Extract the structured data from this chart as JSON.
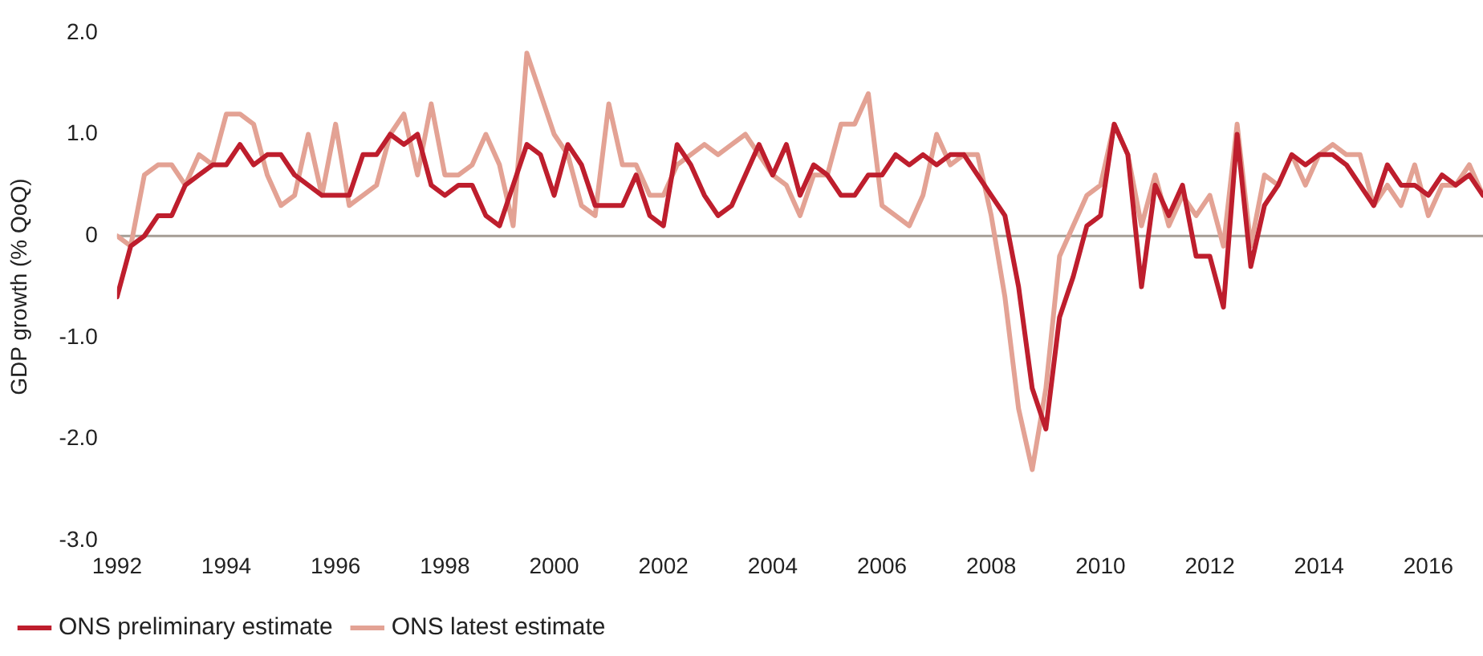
{
  "chart_data": {
    "type": "line",
    "ylabel": "GDP growth (% QoQ)",
    "x": [
      1992,
      1992.25,
      1992.5,
      1992.75,
      1993,
      1993.25,
      1993.5,
      1993.75,
      1994,
      1994.25,
      1994.5,
      1994.75,
      1995,
      1995.25,
      1995.5,
      1995.75,
      1996,
      1996.25,
      1996.5,
      1996.75,
      1997,
      1997.25,
      1997.5,
      1997.75,
      1998,
      1998.25,
      1998.5,
      1998.75,
      1999,
      1999.25,
      1999.5,
      1999.75,
      2000,
      2000.25,
      2000.5,
      2000.75,
      2001,
      2001.25,
      2001.5,
      2001.75,
      2002,
      2002.25,
      2002.5,
      2002.75,
      2003,
      2003.25,
      2003.5,
      2003.75,
      2004,
      2004.25,
      2004.5,
      2004.75,
      2005,
      2005.25,
      2005.5,
      2005.75,
      2006,
      2006.25,
      2006.5,
      2006.75,
      2007,
      2007.25,
      2007.5,
      2007.75,
      2008,
      2008.25,
      2008.5,
      2008.75,
      2009,
      2009.25,
      2009.5,
      2009.75,
      2010,
      2010.25,
      2010.5,
      2010.75,
      2011,
      2011.25,
      2011.5,
      2011.75,
      2012,
      2012.25,
      2012.5,
      2012.75,
      2013,
      2013.25,
      2013.5,
      2013.75,
      2014,
      2014.25,
      2014.5,
      2014.75,
      2015,
      2015.25,
      2015.5,
      2015.75,
      2016,
      2016.25,
      2016.5,
      2016.75,
      2017
    ],
    "series": [
      {
        "name": "ONS preliminary estimate",
        "color": "#be1e2d",
        "values": [
          -0.6,
          -0.1,
          0,
          0.2,
          0.2,
          0.5,
          0.6,
          0.7,
          0.7,
          0.9,
          0.7,
          0.8,
          0.8,
          0.6,
          0.5,
          0.4,
          0.4,
          0.4,
          0.8,
          0.8,
          1.0,
          0.9,
          1.0,
          0.5,
          0.4,
          0.5,
          0.5,
          0.2,
          0.1,
          0.5,
          0.9,
          0.8,
          0.4,
          0.9,
          0.7,
          0.3,
          0.3,
          0.3,
          0.6,
          0.2,
          0.1,
          0.9,
          0.7,
          0.4,
          0.2,
          0.3,
          0.6,
          0.9,
          0.6,
          0.9,
          0.4,
          0.7,
          0.6,
          0.4,
          0.4,
          0.6,
          0.6,
          0.8,
          0.7,
          0.8,
          0.7,
          0.8,
          0.8,
          0.6,
          0.4,
          0.2,
          -0.5,
          -1.5,
          -1.9,
          -0.8,
          -0.4,
          0.1,
          0.2,
          1.1,
          0.8,
          -0.5,
          0.5,
          0.2,
          0.5,
          -0.2,
          -0.2,
          -0.7,
          1.0,
          -0.3,
          0.3,
          0.5,
          0.8,
          0.7,
          0.8,
          0.8,
          0.7,
          0.5,
          0.3,
          0.7,
          0.5,
          0.5,
          0.4,
          0.6,
          0.5,
          0.6,
          0.4
        ]
      },
      {
        "name": "ONS latest estimate",
        "color": "#e3a294",
        "values": [
          0,
          -0.1,
          0.6,
          0.7,
          0.7,
          0.5,
          0.8,
          0.7,
          1.2,
          1.2,
          1.1,
          0.6,
          0.3,
          0.4,
          1.0,
          0.4,
          1.1,
          0.3,
          0.4,
          0.5,
          1.0,
          1.2,
          0.6,
          1.3,
          0.6,
          0.6,
          0.7,
          1.0,
          0.7,
          0.1,
          1.8,
          1.4,
          1.0,
          0.8,
          0.3,
          0.2,
          1.3,
          0.7,
          0.7,
          0.4,
          0.4,
          0.7,
          0.8,
          0.9,
          0.8,
          0.9,
          1.0,
          0.8,
          0.6,
          0.5,
          0.2,
          0.6,
          0.6,
          1.1,
          1.1,
          1.4,
          0.3,
          0.2,
          0.1,
          0.4,
          1.0,
          0.7,
          0.8,
          0.8,
          0.2,
          -0.6,
          -1.7,
          -2.3,
          -1.5,
          -0.2,
          0.1,
          0.4,
          0.5,
          1.1,
          0.8,
          0.1,
          0.6,
          0.1,
          0.4,
          0.2,
          0.4,
          -0.1,
          1.1,
          -0.1,
          0.6,
          0.5,
          0.8,
          0.5,
          0.8,
          0.9,
          0.8,
          0.8,
          0.3,
          0.5,
          0.3,
          0.7,
          0.2,
          0.5,
          0.5,
          0.7,
          0.4
        ]
      }
    ],
    "xlim": [
      1992,
      2017
    ],
    "xticks": [
      1992,
      1994,
      1996,
      1998,
      2000,
      2002,
      2004,
      2006,
      2008,
      2010,
      2012,
      2014,
      2016
    ],
    "ylim": [
      -3,
      2
    ],
    "yticks": [
      {
        "value": 2,
        "label": "2.0"
      },
      {
        "value": 1,
        "label": "1.0"
      },
      0,
      {
        "value": -1,
        "label": "-1.0"
      },
      {
        "value": -2,
        "label": "-2.0"
      },
      {
        "value": -3,
        "label": "-3.0"
      }
    ],
    "ref_lines": [
      {
        "axis": "y",
        "value": 0,
        "color": "#a59d95"
      }
    ],
    "grid": false,
    "legend": "bottom left",
    "marker": "none",
    "line_style": "solid"
  }
}
